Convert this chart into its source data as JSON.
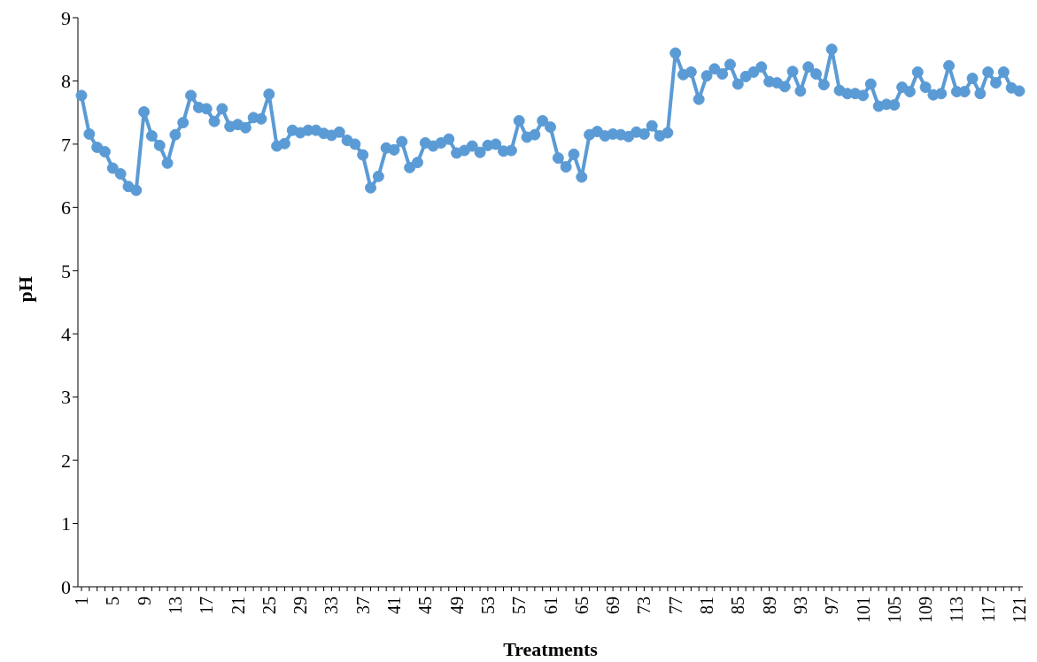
{
  "chart_data": {
    "type": "line",
    "xlabel": "Treatments",
    "ylabel": "pH",
    "categories": [
      "1",
      null,
      null,
      null,
      "5",
      null,
      null,
      null,
      "9",
      null,
      null,
      null,
      "13",
      null,
      null,
      null,
      "17",
      null,
      null,
      null,
      "21",
      null,
      null,
      null,
      "25",
      null,
      null,
      null,
      "29",
      null,
      null,
      null,
      "33",
      null,
      null,
      null,
      "37",
      null,
      null,
      null,
      "41",
      null,
      null,
      null,
      "45",
      null,
      null,
      null,
      "49",
      null,
      null,
      null,
      "53",
      null,
      null,
      null,
      "57",
      null,
      null,
      null,
      "61",
      null,
      null,
      null,
      "65",
      null,
      null,
      null,
      "69",
      null,
      null,
      null,
      "73",
      null,
      null,
      null,
      "77",
      null,
      null,
      null,
      "81",
      null,
      null,
      null,
      "85",
      null,
      null,
      null,
      "89",
      null,
      null,
      null,
      "93",
      null,
      null,
      null,
      "97",
      null,
      null,
      null,
      "101",
      null,
      null,
      null,
      "105",
      null,
      null,
      null,
      "109",
      null,
      null,
      null,
      "113",
      null,
      null,
      null,
      "117",
      null,
      null,
      null,
      "121"
    ],
    "series": [
      {
        "color": "#5b9bd5",
        "values": [
          7.77,
          7.16,
          6.95,
          6.88,
          6.62,
          6.53,
          6.33,
          6.27,
          7.51,
          7.13,
          6.98,
          6.7,
          7.15,
          7.34,
          7.77,
          7.58,
          7.56,
          7.36,
          7.56,
          7.28,
          7.31,
          7.26,
          7.42,
          7.4,
          7.79,
          6.97,
          7.01,
          7.22,
          7.18,
          7.22,
          7.22,
          7.17,
          7.14,
          7.19,
          7.06,
          7.0,
          6.83,
          6.31,
          6.49,
          6.94,
          6.91,
          7.04,
          6.63,
          6.71,
          7.02,
          6.97,
          7.02,
          7.08,
          6.86,
          6.9,
          6.97,
          6.87,
          6.98,
          7.0,
          6.89,
          6.9,
          7.37,
          7.11,
          7.15,
          7.37,
          7.27,
          6.78,
          6.64,
          6.84,
          6.48,
          7.15,
          7.2,
          7.13,
          7.16,
          7.15,
          7.12,
          7.19,
          7.16,
          7.29,
          7.13,
          7.18,
          8.44,
          8.1,
          8.14,
          7.71,
          8.08,
          8.19,
          8.11,
          8.26,
          7.95,
          8.07,
          8.14,
          8.22,
          7.99,
          7.97,
          7.91,
          8.15,
          7.84,
          8.22,
          8.11,
          7.94,
          8.5,
          7.85,
          7.8,
          7.8,
          7.77,
          7.95,
          7.6,
          7.63,
          7.62,
          7.9,
          7.83,
          8.14,
          7.9,
          7.78,
          7.8,
          8.24,
          7.83,
          7.83,
          8.04,
          7.8,
          8.14,
          7.97,
          8.14,
          7.89,
          7.84
        ]
      }
    ],
    "ylim": [
      0,
      9
    ],
    "yticks": [
      0,
      1,
      2,
      3,
      4,
      5,
      6,
      7,
      8,
      9
    ],
    "marker": "circle",
    "line_style": "solid"
  }
}
